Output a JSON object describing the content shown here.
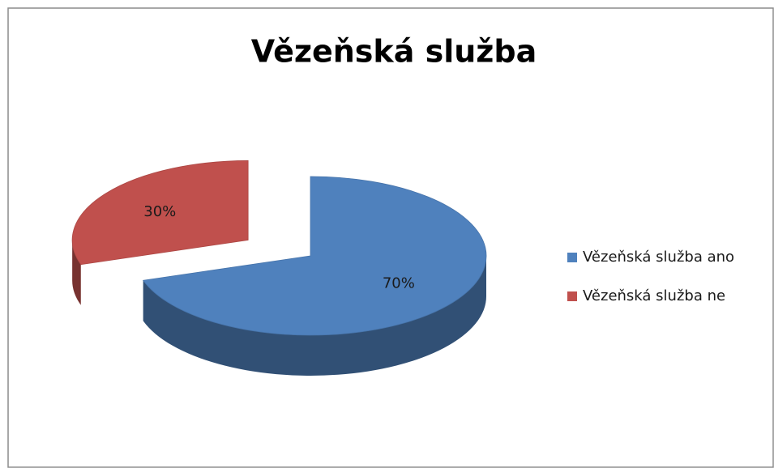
{
  "chart_data": {
    "type": "pie",
    "title": "Vězeňská služba",
    "categories": [
      "Vězeňská služba ano",
      "Vězeňská služba ne"
    ],
    "values": [
      70,
      30
    ],
    "value_labels": [
      "70%",
      "30%"
    ],
    "colors": [
      "#4f81bd",
      "#c0504d"
    ],
    "legend": "right"
  }
}
